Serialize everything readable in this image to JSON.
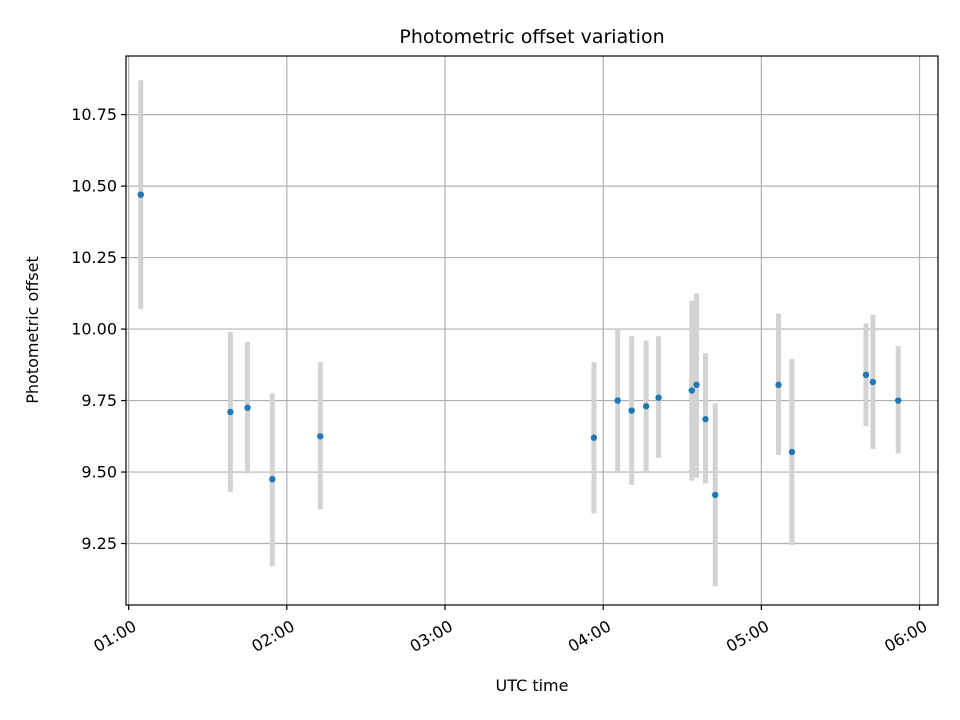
{
  "chart_data": {
    "type": "scatter",
    "title": "Photometric offset variation",
    "xlabel": "UTC time",
    "ylabel": "Photometric offset",
    "xlim_minutes": [
      59.0,
      367.0
    ],
    "ylim": [
      9.035,
      10.955
    ],
    "x_ticks": [
      {
        "minutes": 60,
        "label": "01:00"
      },
      {
        "minutes": 120,
        "label": "02:00"
      },
      {
        "minutes": 180,
        "label": "03:00"
      },
      {
        "minutes": 240,
        "label": "04:00"
      },
      {
        "minutes": 300,
        "label": "05:00"
      },
      {
        "minutes": 360,
        "label": "06:00"
      }
    ],
    "y_ticks": [
      {
        "value": 9.25,
        "label": "9.25"
      },
      {
        "value": 9.5,
        "label": "9.50"
      },
      {
        "value": 9.75,
        "label": "9.75"
      },
      {
        "value": 10.0,
        "label": "10.00"
      },
      {
        "value": 10.25,
        "label": "10.25"
      },
      {
        "value": 10.5,
        "label": "10.50"
      },
      {
        "value": 10.75,
        "label": "10.75"
      }
    ],
    "grid": true,
    "point_color": "#1f77b4",
    "errorbar_color": "#d3d3d3",
    "points": [
      {
        "t": 64.6,
        "y": 10.47,
        "lo": 10.07,
        "hi": 10.87
      },
      {
        "t": 98.6,
        "y": 9.71,
        "lo": 9.43,
        "hi": 9.99
      },
      {
        "t": 105.1,
        "y": 9.725,
        "lo": 9.495,
        "hi": 9.955
      },
      {
        "t": 114.5,
        "y": 9.475,
        "lo": 9.17,
        "hi": 9.775
      },
      {
        "t": 132.7,
        "y": 9.625,
        "lo": 9.37,
        "hi": 9.885
      },
      {
        "t": 236.5,
        "y": 9.62,
        "lo": 9.355,
        "hi": 9.885
      },
      {
        "t": 245.5,
        "y": 9.75,
        "lo": 9.5,
        "hi": 10.0
      },
      {
        "t": 250.8,
        "y": 9.715,
        "lo": 9.455,
        "hi": 9.975
      },
      {
        "t": 256.3,
        "y": 9.73,
        "lo": 9.5,
        "hi": 9.96
      },
      {
        "t": 261.0,
        "y": 9.76,
        "lo": 9.55,
        "hi": 9.975
      },
      {
        "t": 273.6,
        "y": 9.785,
        "lo": 9.47,
        "hi": 10.1
      },
      {
        "t": 275.4,
        "y": 9.805,
        "lo": 9.48,
        "hi": 10.125
      },
      {
        "t": 278.8,
        "y": 9.685,
        "lo": 9.46,
        "hi": 9.915
      },
      {
        "t": 282.5,
        "y": 9.42,
        "lo": 9.1,
        "hi": 9.74
      },
      {
        "t": 306.5,
        "y": 9.805,
        "lo": 9.56,
        "hi": 10.055
      },
      {
        "t": 311.6,
        "y": 9.57,
        "lo": 9.245,
        "hi": 9.895
      },
      {
        "t": 339.7,
        "y": 9.84,
        "lo": 9.66,
        "hi": 10.02
      },
      {
        "t": 342.3,
        "y": 9.815,
        "lo": 9.58,
        "hi": 10.05
      },
      {
        "t": 351.9,
        "y": 9.75,
        "lo": 9.565,
        "hi": 9.94
      }
    ]
  }
}
